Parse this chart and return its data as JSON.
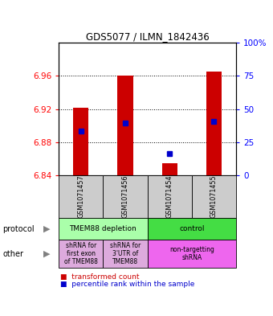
{
  "title": "GDS5077 / ILMN_1842436",
  "samples": [
    "GSM1071457",
    "GSM1071456",
    "GSM1071454",
    "GSM1071455"
  ],
  "bar_bottoms": [
    6.84,
    6.84,
    6.84,
    6.84
  ],
  "bar_tops": [
    6.922,
    6.96,
    6.855,
    6.965
  ],
  "blue_y": [
    6.893,
    6.903,
    6.866,
    6.905
  ],
  "ylim_left": [
    6.84,
    7.0
  ],
  "yticks_left": [
    6.84,
    6.88,
    6.92,
    6.96
  ],
  "ylim_right": [
    0,
    100
  ],
  "yticks_right": [
    0,
    25,
    50,
    75,
    100
  ],
  "yticklabels_right": [
    "0",
    "25",
    "50",
    "75",
    "100%"
  ],
  "bar_color": "#cc0000",
  "blue_color": "#0000cc",
  "bar_width": 0.35,
  "protocol_groups": [
    {
      "label": "TMEM88 depletion",
      "start": 0,
      "end": 2,
      "color": "#aaffaa"
    },
    {
      "label": "control",
      "start": 2,
      "end": 4,
      "color": "#44dd44"
    }
  ],
  "other_groups": [
    {
      "label": "shRNA for\nfirst exon\nof TMEM88",
      "start": 0,
      "end": 1,
      "color": "#ddaadd"
    },
    {
      "label": "shRNA for\n3'UTR of\nTMEM88",
      "start": 1,
      "end": 2,
      "color": "#ddaadd"
    },
    {
      "label": "non-targetting\nshRNA",
      "start": 2,
      "end": 4,
      "color": "#ee66ee"
    }
  ],
  "legend_red_label": "transformed count",
  "legend_blue_label": "percentile rank within the sample",
  "sample_bg_color": "#cccccc",
  "fig_width": 3.4,
  "fig_height": 3.93,
  "dpi": 100
}
